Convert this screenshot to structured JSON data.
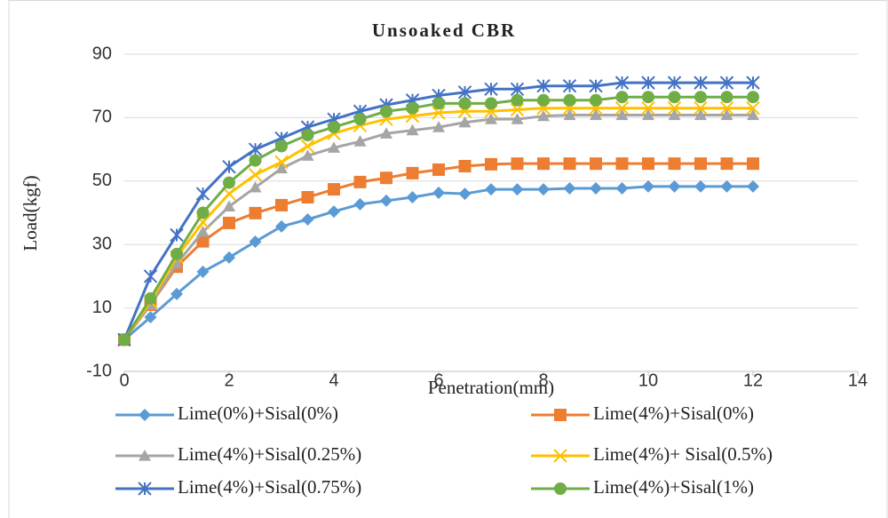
{
  "chart_data": {
    "type": "line",
    "title": "Unsoaked CBR",
    "x_label": "Penetration(mm)",
    "y_label": "Load(kgf)",
    "x": [
      0,
      0.5,
      1,
      1.5,
      2,
      2.5,
      3,
      3.5,
      4,
      4.5,
      5,
      5.5,
      6,
      6.5,
      7,
      7.5,
      8,
      8.5,
      9,
      9.5,
      10,
      10.5,
      11,
      11.5,
      12
    ],
    "xlim": [
      0,
      14
    ],
    "xticks": [
      0,
      2,
      4,
      6,
      8,
      10,
      12,
      14
    ],
    "ylim": [
      -10,
      90
    ],
    "yticks": [
      -10,
      10,
      30,
      50,
      70,
      90
    ],
    "grid": true,
    "legend": "bottom",
    "series": [
      {
        "name": "Lime(0%)+Sisal(0%)",
        "color": "#5b9bd5",
        "marker": "diamond",
        "values": [
          0,
          7.1,
          14.4,
          21.4,
          25.9,
          30.9,
          35.7,
          37.9,
          40.4,
          42.7,
          43.8,
          44.9,
          46.3,
          46,
          47.4,
          47.4,
          47.4,
          47.7,
          47.7,
          47.7,
          48.3,
          48.3,
          48.3,
          48.3,
          48.3
        ]
      },
      {
        "name": "Lime(4%)+Sisal(0%)",
        "color": "#ed7d31",
        "marker": "square",
        "values": [
          0,
          11,
          23,
          31,
          36.8,
          39.9,
          42.4,
          44.9,
          47.4,
          49.7,
          51,
          52.5,
          53.6,
          54.7,
          55.3,
          55.5,
          55.5,
          55.5,
          55.5,
          55.5,
          55.5,
          55.5,
          55.5,
          55.5,
          55.5
        ]
      },
      {
        "name": "Lime(4%)+Sisal(0.25%)",
        "color": "#a5a5a5",
        "marker": "triangle",
        "values": [
          0,
          11,
          24,
          34,
          42,
          48,
          54,
          58,
          60.5,
          62.5,
          65,
          66,
          67,
          68.5,
          69.5,
          69.5,
          70.5,
          70.8,
          70.8,
          70.8,
          70.8,
          70.8,
          70.8,
          70.8,
          70.8
        ]
      },
      {
        "name": "Lime(4%)+ Sisal(0.5%)",
        "color": "#ffc000",
        "marker": "x",
        "values": [
          0,
          12,
          26,
          37,
          46,
          52,
          56,
          61,
          65,
          67.5,
          69.5,
          70.5,
          71.5,
          72,
          72,
          72.5,
          73,
          73,
          73,
          73,
          73,
          73,
          73,
          73,
          73
        ]
      },
      {
        "name": "Lime(4%)+Sisal(0.75%)",
        "color": "#4472c4",
        "marker": "star",
        "values": [
          0,
          20,
          33,
          46,
          54.5,
          60,
          63.5,
          67,
          69.5,
          72,
          74,
          75.5,
          77,
          78,
          79,
          79,
          80,
          80,
          80,
          81,
          81,
          81,
          81,
          81,
          81
        ]
      },
      {
        "name": "Lime(4%)+Sisal(1%)",
        "color": "#70ad47",
        "marker": "circle",
        "values": [
          0,
          13,
          27,
          40,
          49.5,
          56.5,
          61,
          64.5,
          67,
          69.5,
          72,
          73,
          74.5,
          74.5,
          74.5,
          75.5,
          75.5,
          75.5,
          75.5,
          76.5,
          76.5,
          76.5,
          76.5,
          76.5,
          76.5
        ]
      }
    ]
  }
}
